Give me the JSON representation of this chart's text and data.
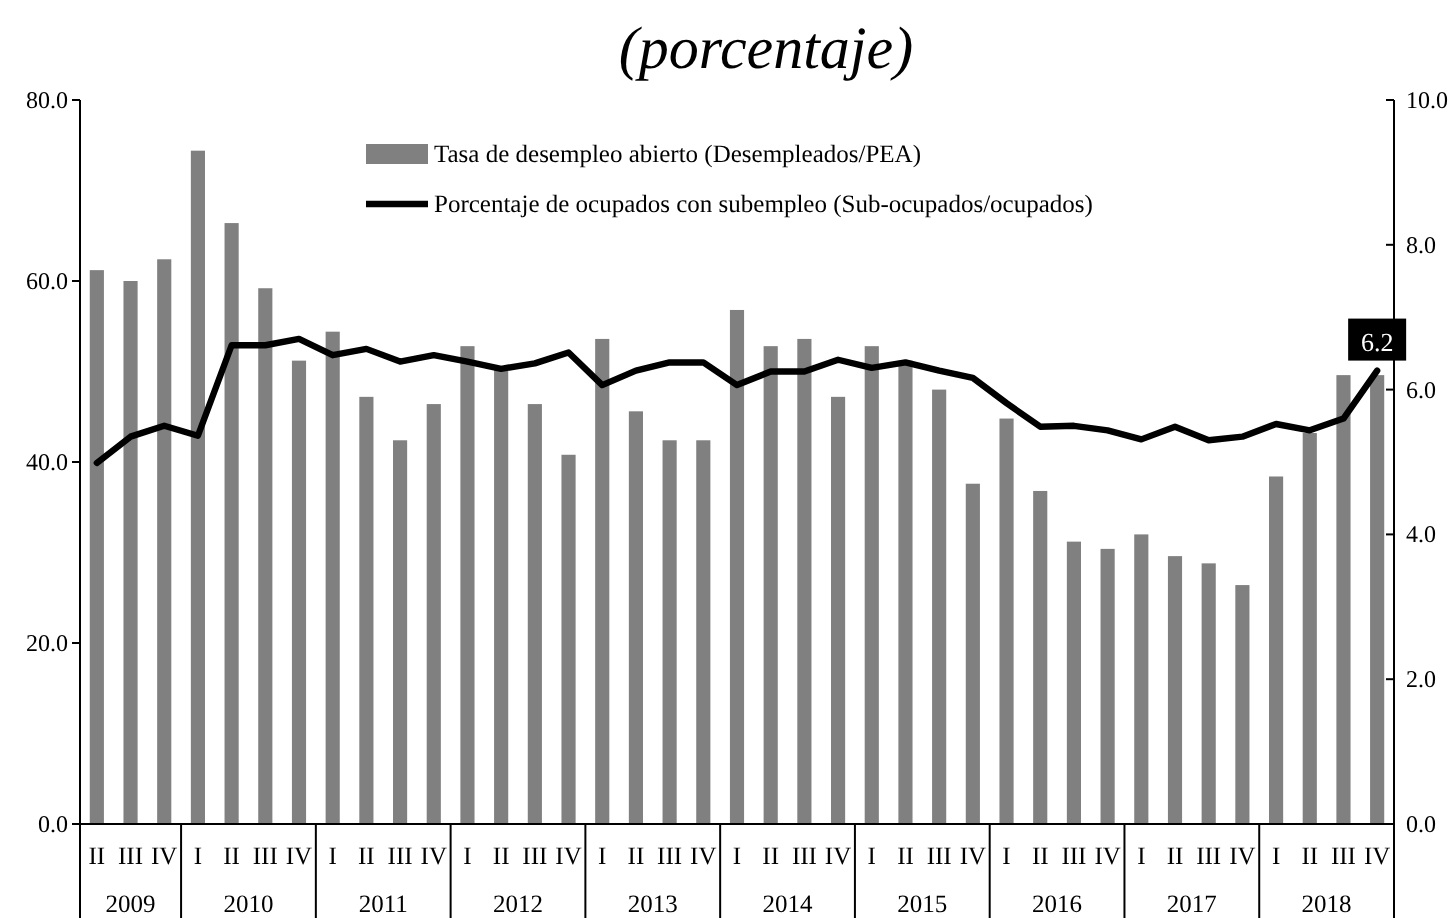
{
  "chart_data": {
    "type": "bar",
    "title": "(porcentaje)",
    "categories": [
      "II",
      "III",
      "IV",
      "I",
      "II",
      "III",
      "IV",
      "I",
      "II",
      "III",
      "IV",
      "I",
      "II",
      "III",
      "IV",
      "I",
      "II",
      "III",
      "IV",
      "I",
      "II",
      "III",
      "IV",
      "I",
      "II",
      "III",
      "IV",
      "I",
      "II",
      "III",
      "IV",
      "I",
      "II",
      "III",
      "IV",
      "I",
      "II",
      "III",
      "IV"
    ],
    "annotations": [
      "2009",
      "2010",
      "2011",
      "2012",
      "2013",
      "2014",
      "2015",
      "2016",
      "2017",
      "2018"
    ],
    "series": [
      {
        "name": "Tasa de desempleo abierto (Desempleados/PEA)",
        "axis": "y2",
        "color": "#808080",
        "values": [
          7.65,
          7.5,
          7.8,
          9.3,
          8.3,
          7.4,
          6.4,
          6.8,
          5.9,
          5.3,
          5.8,
          6.6,
          6.3,
          5.8,
          5.1,
          6.7,
          5.7,
          5.3,
          5.3,
          7.1,
          6.6,
          6.7,
          5.9,
          6.6,
          6.4,
          6.0,
          4.7,
          5.6,
          4.6,
          3.9,
          3.8,
          4.0,
          3.7,
          3.6,
          3.3,
          4.8,
          5.4,
          6.2,
          6.2
        ],
        "value_labels": [
          null,
          null,
          null,
          null,
          null,
          null,
          null,
          null,
          null,
          null,
          null,
          null,
          null,
          null,
          null,
          null,
          null,
          null,
          null,
          null,
          null,
          null,
          null,
          null,
          null,
          null,
          null,
          null,
          null,
          null,
          null,
          null,
          null,
          null,
          null,
          null,
          null,
          null,
          "6.2"
        ]
      },
      {
        "name": "Porcentaje de ocupados con subempleo (Sub-ocupados/ocupados)",
        "type": "line",
        "color": "#000000",
        "values": [
          39.9,
          42.8,
          44.0,
          42.9,
          52.9,
          52.9,
          53.6,
          51.8,
          52.5,
          51.1,
          51.8,
          51.1,
          50.3,
          50.9,
          52.1,
          48.5,
          50.1,
          51.0,
          51.0,
          48.5,
          50.0,
          50.0,
          51.3,
          50.4,
          51.0,
          50.1,
          49.3,
          46.5,
          43.9,
          44.0,
          43.5,
          42.5,
          43.9,
          42.4,
          42.8,
          44.2,
          43.5,
          44.8,
          50.1
        ]
      }
    ],
    "ylim": [
      0,
      80
    ],
    "yticks": [
      {
        "value": 0,
        "label": "0.0"
      },
      {
        "value": 20,
        "label": "20.0"
      },
      {
        "value": 40,
        "label": "40.0"
      },
      {
        "value": 60,
        "label": "60.0"
      },
      {
        "value": 80,
        "label": "80.0"
      }
    ],
    "y2lim": [
      0,
      10
    ],
    "y2ticks": [
      {
        "value": 0,
        "label": "0.0"
      },
      {
        "value": 2,
        "label": "2.0"
      },
      {
        "value": 4,
        "label": "4.0"
      },
      {
        "value": 6,
        "label": "6.0"
      },
      {
        "value": 8,
        "label": "8.0"
      },
      {
        "value": 10,
        "label": "10.0"
      }
    ],
    "grid": false,
    "legend": "top",
    "marker": "none",
    "line_style": "solid"
  }
}
